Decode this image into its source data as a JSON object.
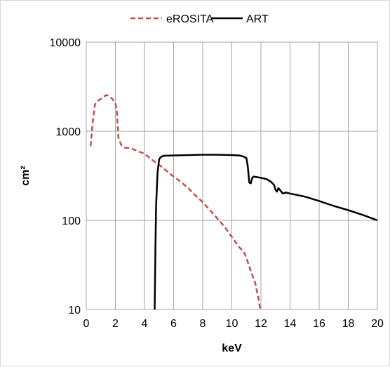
{
  "chart_data": {
    "type": "line",
    "xlabel": "keV",
    "ylabel": "cm²",
    "xlim": [
      0,
      20
    ],
    "ylim": [
      10,
      10000
    ],
    "yscale": "log",
    "x_ticks": [
      "0",
      "2",
      "4",
      "6",
      "8",
      "10",
      "12",
      "14",
      "16",
      "18",
      "20"
    ],
    "y_ticks": [
      "10",
      "100",
      "1000",
      "10000"
    ],
    "grid": true,
    "legend_position": "top",
    "series": [
      {
        "name": "eROSITA",
        "color": "#c0504d",
        "style": "dashed",
        "points": [
          [
            0.3,
            680
          ],
          [
            0.45,
            1300
          ],
          [
            0.6,
            2000
          ],
          [
            0.8,
            2200
          ],
          [
            1.0,
            2300
          ],
          [
            1.2,
            2450
          ],
          [
            1.4,
            2550
          ],
          [
            1.6,
            2450
          ],
          [
            1.8,
            2300
          ],
          [
            2.0,
            2050
          ],
          [
            2.1,
            1700
          ],
          [
            2.2,
            850
          ],
          [
            2.4,
            700
          ],
          [
            2.7,
            650
          ],
          [
            3.0,
            650
          ],
          [
            3.5,
            600
          ],
          [
            4.0,
            560
          ],
          [
            4.5,
            480
          ],
          [
            5.0,
            420
          ],
          [
            5.5,
            360
          ],
          [
            6.0,
            310
          ],
          [
            6.5,
            270
          ],
          [
            7.0,
            230
          ],
          [
            7.5,
            190
          ],
          [
            8.0,
            160
          ],
          [
            8.5,
            130
          ],
          [
            9.0,
            105
          ],
          [
            9.5,
            85
          ],
          [
            10.0,
            65
          ],
          [
            10.5,
            50
          ],
          [
            10.8,
            45
          ],
          [
            11.0,
            38
          ],
          [
            11.3,
            27
          ],
          [
            11.6,
            20
          ],
          [
            11.8,
            14
          ],
          [
            11.95,
            10
          ]
        ]
      },
      {
        "name": "ART",
        "color": "#000000",
        "style": "solid",
        "points": [
          [
            4.7,
            10
          ],
          [
            4.75,
            50
          ],
          [
            4.8,
            150
          ],
          [
            4.9,
            350
          ],
          [
            5.0,
            480
          ],
          [
            5.1,
            510
          ],
          [
            5.3,
            530
          ],
          [
            6.0,
            535
          ],
          [
            7.0,
            540
          ],
          [
            8.0,
            545
          ],
          [
            9.0,
            545
          ],
          [
            10.0,
            540
          ],
          [
            10.5,
            535
          ],
          [
            10.8,
            520
          ],
          [
            11.0,
            500
          ],
          [
            11.1,
            400
          ],
          [
            11.2,
            265
          ],
          [
            11.3,
            260
          ],
          [
            11.4,
            300
          ],
          [
            11.5,
            310
          ],
          [
            12.0,
            300
          ],
          [
            12.4,
            290
          ],
          [
            12.7,
            270
          ],
          [
            12.9,
            250
          ],
          [
            13.0,
            220
          ],
          [
            13.1,
            210
          ],
          [
            13.2,
            230
          ],
          [
            13.4,
            210
          ],
          [
            13.5,
            200
          ],
          [
            13.7,
            205
          ],
          [
            14.0,
            200
          ],
          [
            15.0,
            185
          ],
          [
            16.0,
            165
          ],
          [
            17.0,
            145
          ],
          [
            18.0,
            130
          ],
          [
            19.0,
            115
          ],
          [
            20.0,
            100
          ]
        ]
      }
    ]
  }
}
